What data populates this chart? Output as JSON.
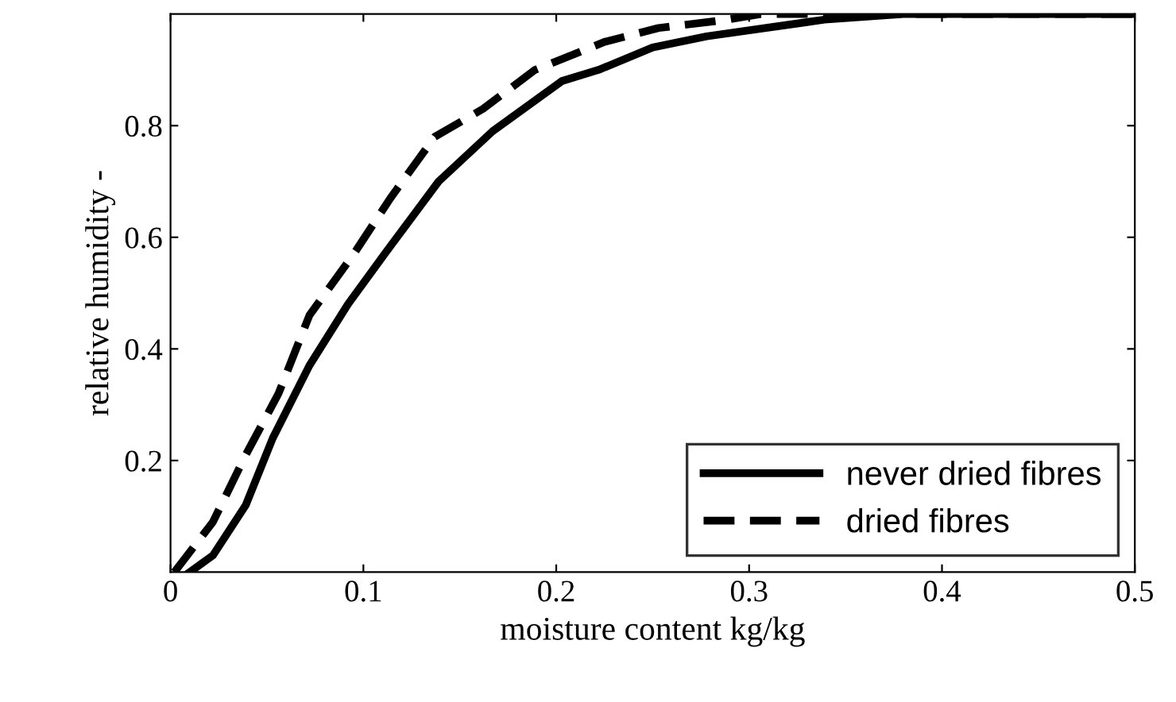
{
  "chart_data": {
    "type": "line",
    "xlabel": "moisture content kg/kg",
    "ylabel": "relative humidity -",
    "xlim": [
      0,
      0.5
    ],
    "ylim": [
      0,
      1
    ],
    "xticks": [
      0,
      0.1,
      0.2,
      0.3,
      0.4,
      0.5
    ],
    "yticks": [
      0.2,
      0.4,
      0.6,
      0.8
    ],
    "grid": false,
    "legend": "bottom right",
    "series": [
      {
        "name": "never dried fibres",
        "color": "#000000",
        "line_style": "solid",
        "x": [
          0.01,
          0.022,
          0.039,
          0.053,
          0.072,
          0.092,
          0.111,
          0.139,
          0.167,
          0.203,
          0.222,
          0.25,
          0.278,
          0.339,
          0.38,
          0.5
        ],
        "values": [
          0,
          0.03,
          0.12,
          0.24,
          0.37,
          0.48,
          0.57,
          0.7,
          0.79,
          0.88,
          0.9,
          0.94,
          0.96,
          0.99,
          1.0,
          1.0
        ]
      },
      {
        "name": "dried fibres",
        "color": "#000000",
        "line_style": "dashed",
        "x": [
          0.002,
          0.022,
          0.039,
          0.056,
          0.072,
          0.095,
          0.114,
          0.137,
          0.162,
          0.189,
          0.225,
          0.253,
          0.289,
          0.306,
          0.5
        ],
        "values": [
          0,
          0.09,
          0.21,
          0.32,
          0.46,
          0.57,
          0.67,
          0.78,
          0.83,
          0.9,
          0.95,
          0.975,
          0.99,
          1.0,
          1.0
        ]
      }
    ]
  }
}
